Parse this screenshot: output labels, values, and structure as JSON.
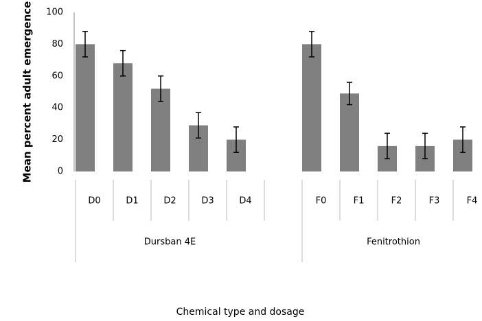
{
  "chart_data": {
    "type": "bar",
    "y_label": "Mean percent adult emergence",
    "x_label": "Chemical type and dosage",
    "categories": [
      "D0",
      "D1",
      "D2",
      "D3",
      "D4",
      null,
      "F0",
      "F1",
      "F2",
      "F3",
      "F4"
    ],
    "values": [
      80,
      68,
      52,
      29,
      20,
      null,
      80,
      49,
      16,
      16,
      20
    ],
    "errors": [
      8,
      8,
      8,
      8,
      8,
      null,
      8,
      7,
      8,
      8,
      8
    ],
    "groups": [
      "Dursban 4E",
      "Fenitrothion"
    ],
    "color": "#808080",
    "ylim": [
      0,
      100
    ],
    "yticks": [
      0,
      20,
      40,
      60,
      80,
      100
    ],
    "grid": false
  }
}
